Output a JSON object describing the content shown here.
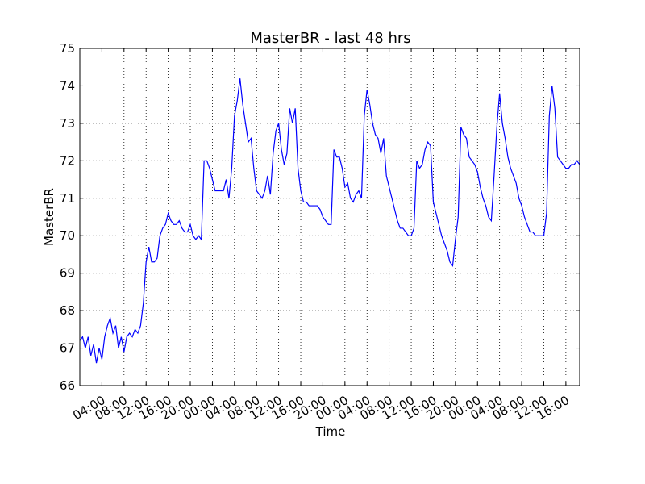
{
  "chart_data": {
    "type": "line",
    "title": "MasterBR - last 48 hrs",
    "xlabel": "Time",
    "ylabel": "MasterBR",
    "color": "#0000ff",
    "grid": true,
    "xlim": [
      0,
      90.5
    ],
    "ylim": [
      66,
      75
    ],
    "yticks": [
      66,
      67,
      68,
      69,
      70,
      71,
      72,
      73,
      74,
      75
    ],
    "xticks": [
      {
        "value": 4,
        "label": "04:00"
      },
      {
        "value": 8,
        "label": "08:00"
      },
      {
        "value": 12,
        "label": "12:00"
      },
      {
        "value": 16,
        "label": "16:00"
      },
      {
        "value": 20,
        "label": "20:00"
      },
      {
        "value": 24,
        "label": "00:00"
      },
      {
        "value": 28,
        "label": "04:00"
      },
      {
        "value": 32,
        "label": "08:00"
      },
      {
        "value": 36,
        "label": "12:00"
      },
      {
        "value": 40,
        "label": "16:00"
      },
      {
        "value": 44,
        "label": "20:00"
      },
      {
        "value": 48,
        "label": "00:00"
      },
      {
        "value": 52,
        "label": "04:00"
      },
      {
        "value": 56,
        "label": "08:00"
      },
      {
        "value": 60,
        "label": "12:00"
      },
      {
        "value": 64,
        "label": "16:00"
      },
      {
        "value": 68,
        "label": "20:00"
      },
      {
        "value": 72,
        "label": "00:00"
      },
      {
        "value": 76,
        "label": "04:00"
      },
      {
        "value": 80,
        "label": "08:00"
      },
      {
        "value": 84,
        "label": "12:00"
      },
      {
        "value": 88,
        "label": "16:00"
      }
    ],
    "x": [
      0,
      0.5,
      1,
      1.5,
      2,
      2.5,
      3,
      3.5,
      4,
      4.5,
      5,
      5.5,
      6,
      6.5,
      7,
      7.5,
      8,
      8.5,
      9,
      9.5,
      10,
      10.5,
      11,
      11.5,
      12,
      12.5,
      13,
      13.5,
      14,
      14.5,
      15,
      15.5,
      16,
      16.5,
      17,
      17.5,
      18,
      18.5,
      19,
      19.5,
      20,
      20.5,
      21,
      21.5,
      22,
      22.5,
      23,
      23.5,
      24,
      24.5,
      25,
      25.5,
      26,
      26.5,
      27,
      27.5,
      28,
      28.5,
      29,
      29.5,
      30,
      30.5,
      31,
      31.5,
      32,
      32.5,
      33,
      33.5,
      34,
      34.5,
      35,
      35.5,
      36,
      36.5,
      37,
      37.5,
      38,
      38.5,
      39,
      39.5,
      40,
      40.5,
      41,
      41.5,
      42,
      42.5,
      43,
      43.5,
      44,
      44.5,
      45,
      45.5,
      46,
      46.5,
      47,
      47.5,
      48,
      48.5,
      49,
      49.5,
      50,
      50.5,
      51,
      51.5,
      52,
      52.5,
      53,
      53.5,
      54,
      54.5,
      55,
      55.5,
      56,
      56.5,
      57,
      57.5,
      58,
      58.5,
      59,
      59.5,
      60,
      60.5,
      61,
      61.5,
      62,
      62.5,
      63,
      63.5,
      64,
      64.5,
      65,
      65.5,
      66,
      66.5,
      67,
      67.5,
      68,
      68.5,
      69,
      69.5,
      70,
      70.5,
      71,
      71.5,
      72,
      72.5,
      73,
      73.5,
      74,
      74.5,
      75,
      75.5,
      76,
      76.5,
      77,
      77.5,
      78,
      78.5,
      79,
      79.5,
      80,
      80.5,
      81,
      81.5,
      82,
      82.5,
      83,
      83.5,
      84,
      84.5,
      85,
      85.5,
      86,
      86.5,
      87,
      87.5,
      88,
      88.5,
      89,
      89.5,
      90,
      90.5
    ],
    "values": [
      67.2,
      67.3,
      67.0,
      67.3,
      66.8,
      67.1,
      66.6,
      67.0,
      66.7,
      67.3,
      67.6,
      67.8,
      67.4,
      67.6,
      67.0,
      67.3,
      66.9,
      67.3,
      67.4,
      67.3,
      67.5,
      67.4,
      67.6,
      68.2,
      69.3,
      69.7,
      69.3,
      69.3,
      69.4,
      70.0,
      70.2,
      70.3,
      70.6,
      70.4,
      70.3,
      70.3,
      70.4,
      70.2,
      70.1,
      70.1,
      70.3,
      70.0,
      69.9,
      70.0,
      69.9,
      72.0,
      72.0,
      71.8,
      71.5,
      71.2,
      71.2,
      71.2,
      71.2,
      71.5,
      71.0,
      71.8,
      73.2,
      73.6,
      74.2,
      73.5,
      73.0,
      72.5,
      72.6,
      71.8,
      71.2,
      71.1,
      71.0,
      71.2,
      71.6,
      71.1,
      72.2,
      72.8,
      73.0,
      72.3,
      71.9,
      72.2,
      73.4,
      73.0,
      73.4,
      71.8,
      71.2,
      70.9,
      70.9,
      70.8,
      70.8,
      70.8,
      70.8,
      70.7,
      70.5,
      70.4,
      70.3,
      70.3,
      72.3,
      72.1,
      72.1,
      71.8,
      71.3,
      71.4,
      71.0,
      70.9,
      71.1,
      71.2,
      71.0,
      73.2,
      73.9,
      73.5,
      73.0,
      72.7,
      72.6,
      72.2,
      72.6,
      71.6,
      71.3,
      71.0,
      70.7,
      70.4,
      70.2,
      70.2,
      70.1,
      70.0,
      70.0,
      70.2,
      72.0,
      71.8,
      71.9,
      72.3,
      72.5,
      72.4,
      70.9,
      70.6,
      70.3,
      70.0,
      69.8,
      69.6,
      69.3,
      69.2,
      69.9,
      70.5,
      72.9,
      72.7,
      72.6,
      72.1,
      72.0,
      71.9,
      71.7,
      71.3,
      71.0,
      70.8,
      70.5,
      70.4,
      71.6,
      72.9,
      73.8,
      73.0,
      72.6,
      72.1,
      71.8,
      71.6,
      71.4,
      71.0,
      70.8,
      70.5,
      70.3,
      70.1,
      70.1,
      70.0,
      70.0,
      70.0,
      70.0,
      70.6,
      73.2,
      74.0,
      73.4,
      72.1,
      72.0,
      71.9,
      71.8,
      71.8,
      71.9,
      71.9,
      72.0,
      71.9
    ]
  }
}
